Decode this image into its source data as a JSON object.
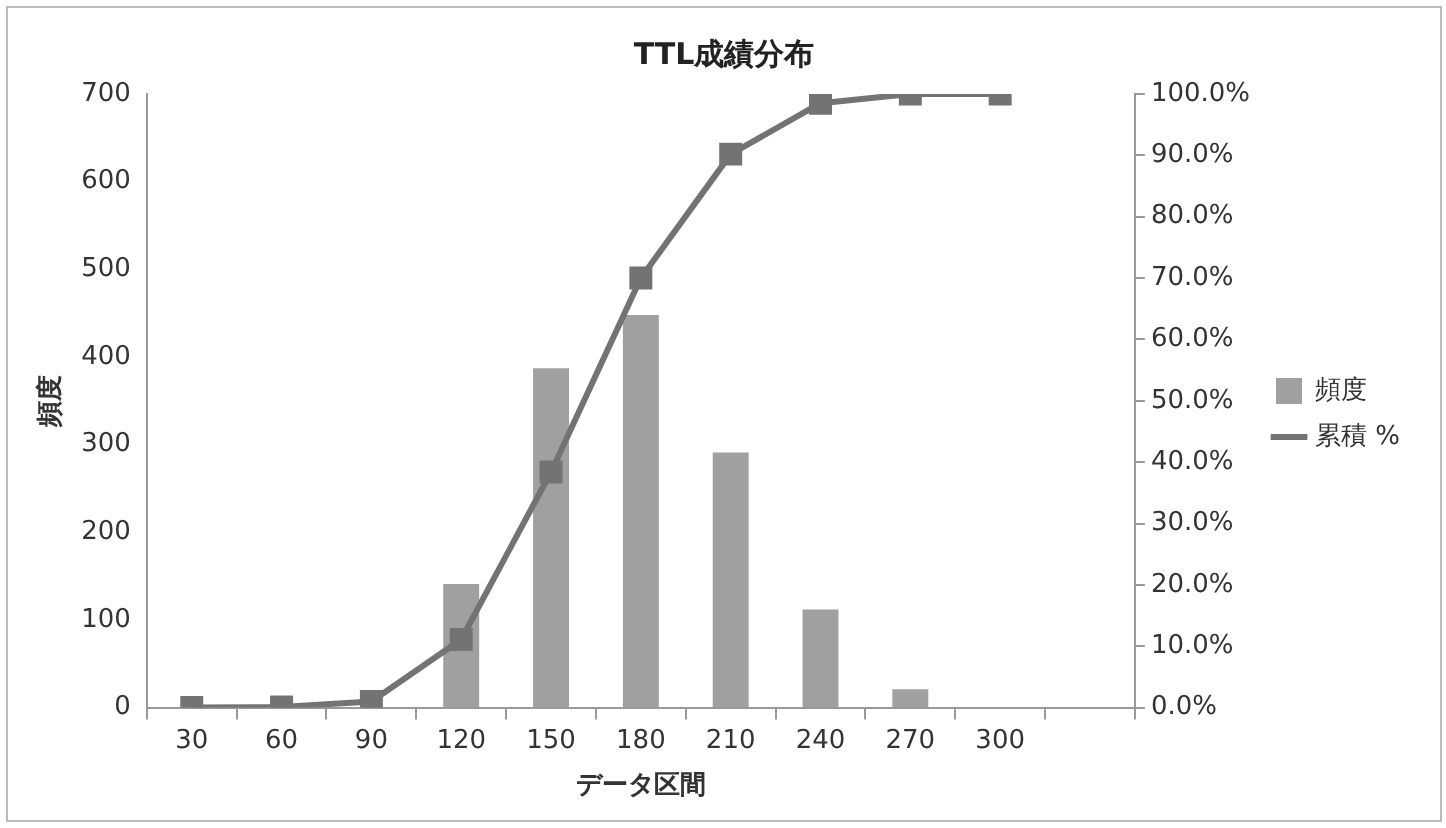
{
  "chart_data": {
    "type": "bar",
    "title": "TTL成績分布",
    "xlabel": "データ区間",
    "ylabel": "頻度",
    "categories": [
      "30",
      "60",
      "90",
      "120",
      "150",
      "180",
      "210",
      "240",
      "270",
      "300",
      null
    ],
    "series": [
      {
        "name": "頻度",
        "color": "#a0a0a0",
        "values": [
          null,
          null,
          null,
          141,
          387,
          448,
          291,
          112,
          21,
          0,
          0
        ]
      },
      {
        "name": "累積 %",
        "type": "line",
        "axis": "y2",
        "color": "#737373",
        "marker": "square",
        "values": [
          0,
          0.1,
          1.0,
          11.1,
          38.4,
          70.0,
          90.2,
          98.5,
          100,
          100,
          null
        ]
      }
    ],
    "ylim": [
      0,
      700
    ],
    "yticks": [
      0,
      100,
      200,
      300,
      400,
      500,
      600,
      700
    ],
    "y2lim": [
      0,
      100
    ],
    "y2ticks": [
      {
        "value": 0,
        "label": "0.0%"
      },
      {
        "value": 10,
        "label": "10.0%"
      },
      {
        "value": 20,
        "label": "20.0%"
      },
      {
        "value": 30,
        "label": "30.0%"
      },
      {
        "value": 40,
        "label": "40.0%"
      },
      {
        "value": 50,
        "label": "50.0%"
      },
      {
        "value": 60,
        "label": "60.0%"
      },
      {
        "value": 70,
        "label": "70.0%"
      },
      {
        "value": 80,
        "label": "80.0%"
      },
      {
        "value": 90,
        "label": "90.0%"
      },
      {
        "value": 100,
        "label": "100.0%"
      }
    ],
    "grid": false,
    "legend": "right"
  }
}
